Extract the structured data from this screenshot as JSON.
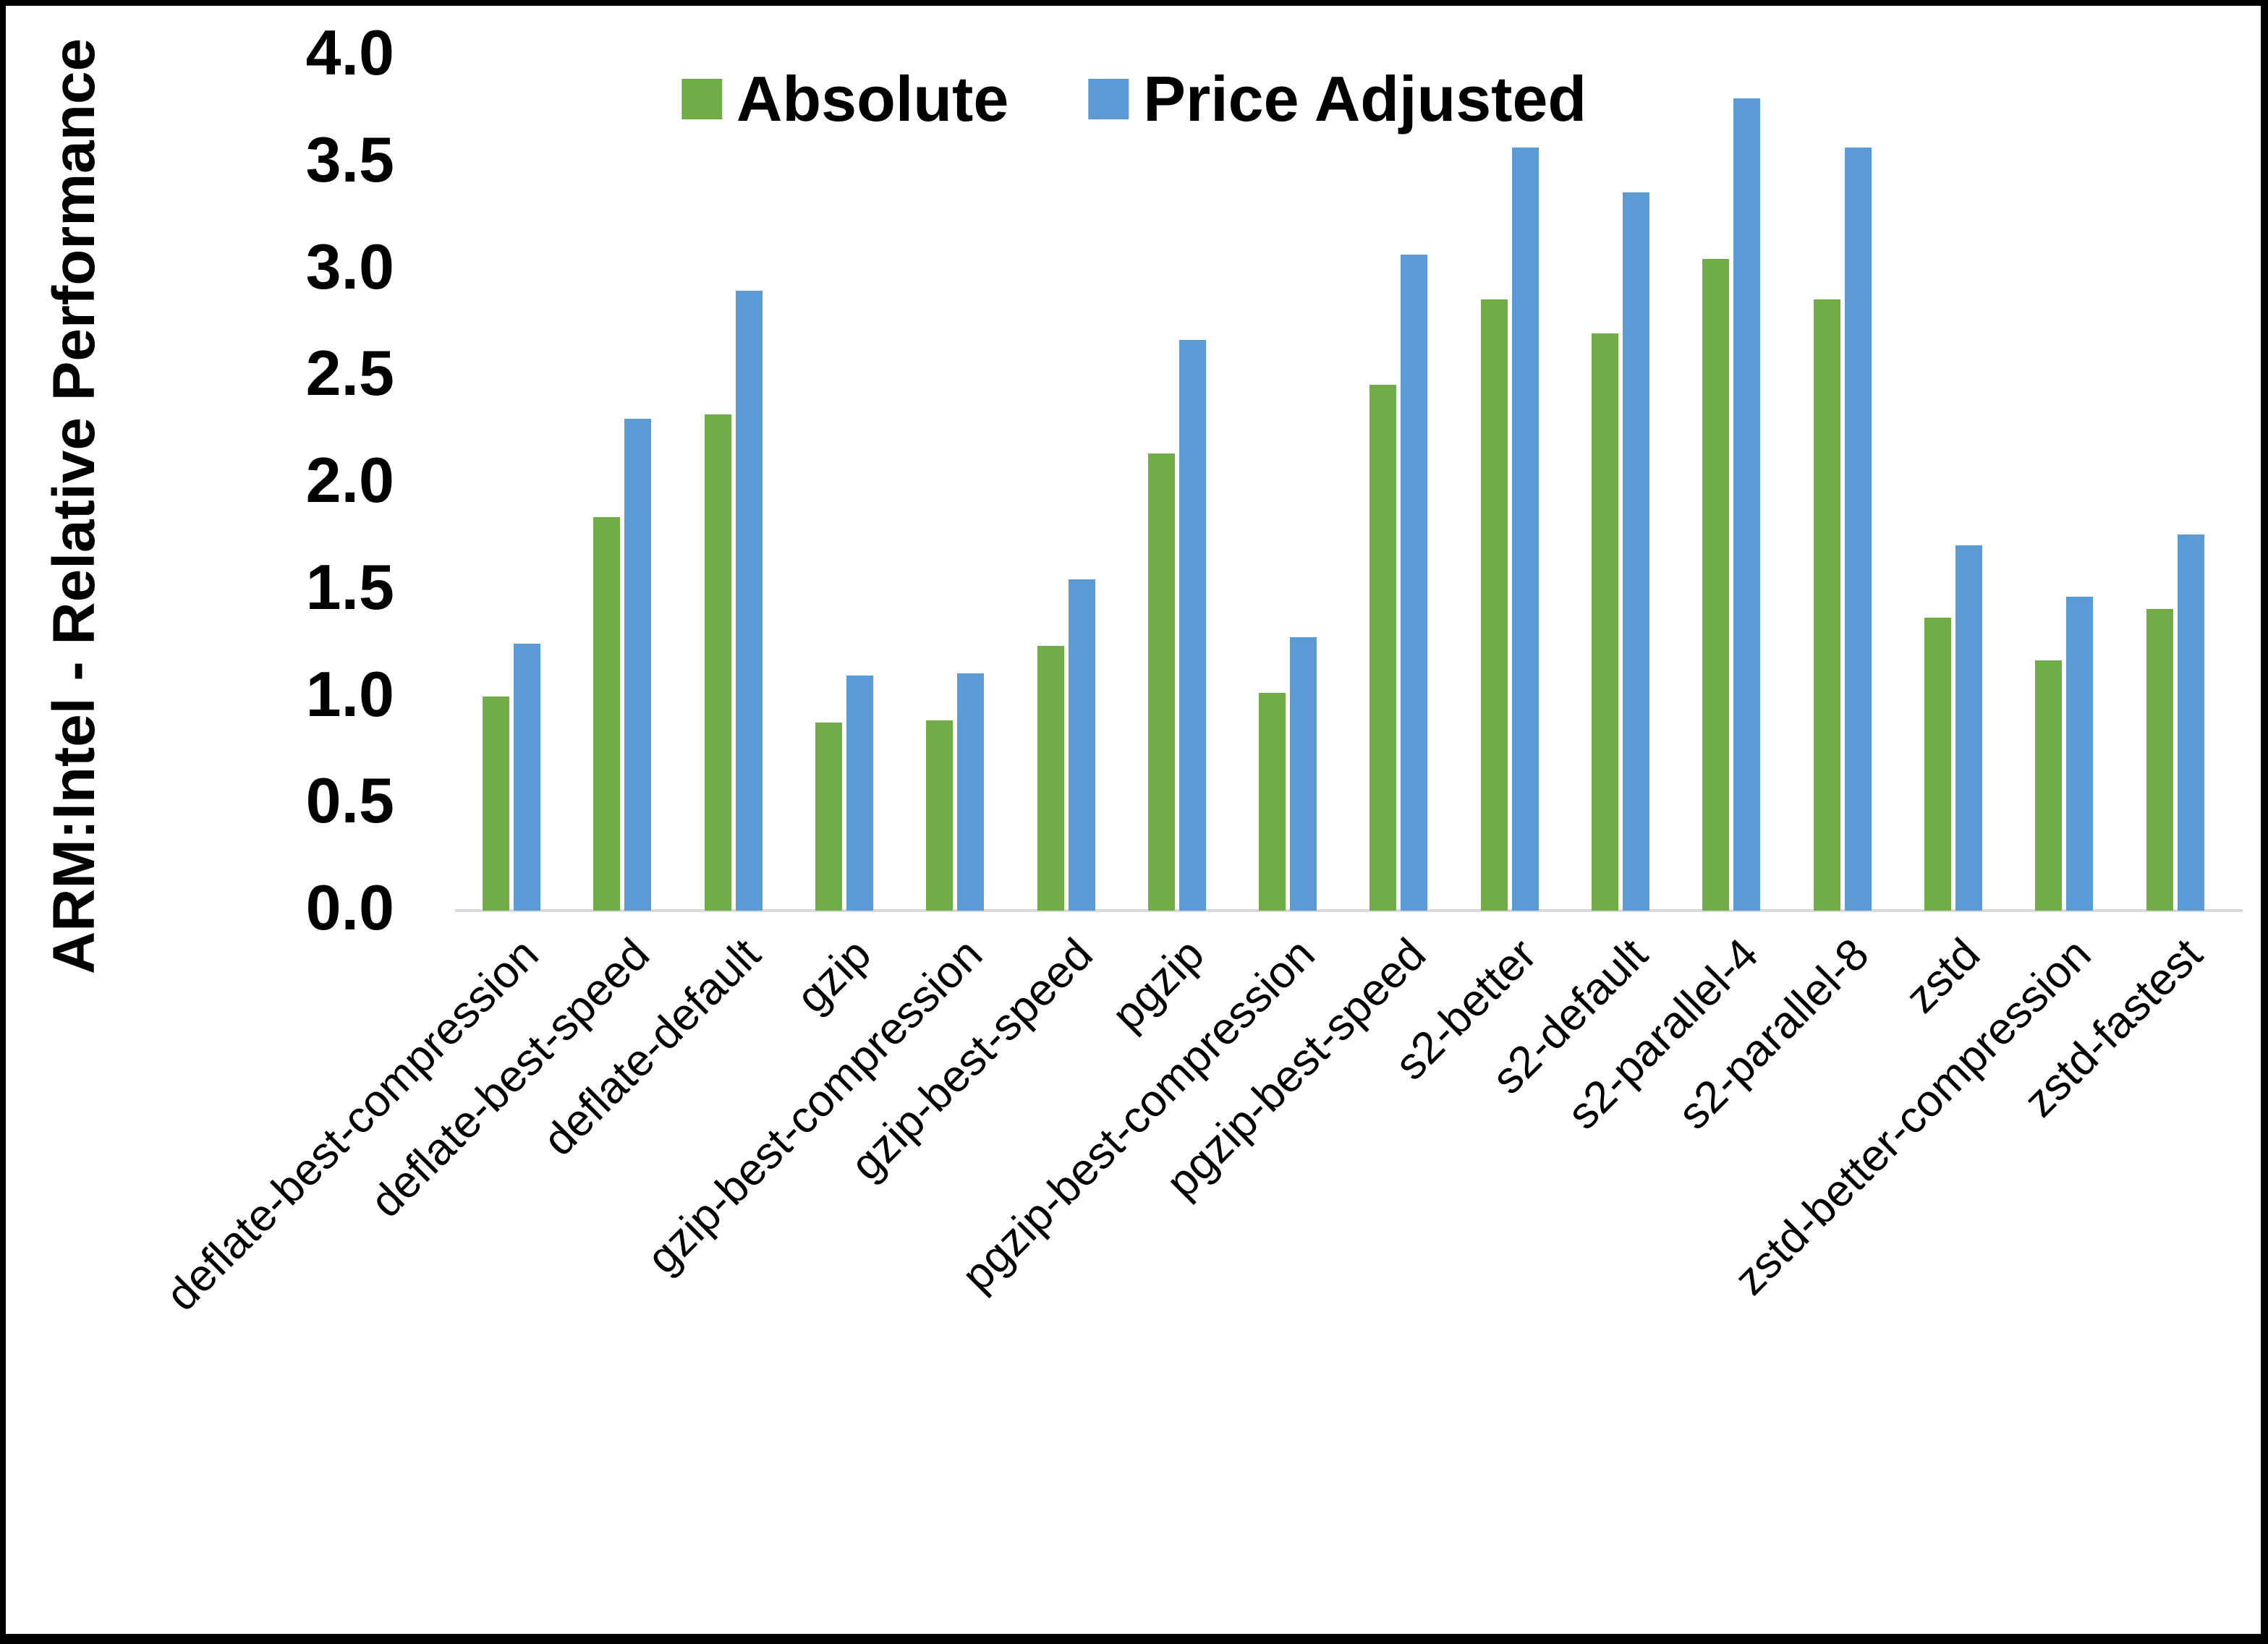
{
  "frame": {
    "background": "#ffffff",
    "border_color": "#000000"
  },
  "chart_data": {
    "type": "bar",
    "title": "",
    "ylabel": "ARM:Intel - Relative Performance",
    "xlabel": "",
    "ylim": [
      0.0,
      4.0
    ],
    "ytick_step": 0.5,
    "ytick_labels": [
      "0.0",
      "0.5",
      "1.0",
      "1.5",
      "2.0",
      "2.5",
      "3.0",
      "3.5",
      "4.0"
    ],
    "grid": false,
    "legend_position": "top-center",
    "axis_line_color": "#d9d9d9",
    "categories": [
      "deflate-best-compression",
      "deflate-best-speed",
      "deflate-default",
      "gzip",
      "gzip-best-compression",
      "gzip-best-speed",
      "pgzip",
      "pgzip-best-compression",
      "pgzip-best-speed",
      "s2-better",
      "s2-default",
      "s2-parallel-4",
      "s2-parallel-8",
      "zstd",
      "zstd-better-compression",
      "zstd-fastest"
    ],
    "series": [
      {
        "name": "Absolute",
        "color": "#70AD47",
        "values": [
          1.0,
          1.84,
          2.32,
          0.88,
          0.89,
          1.24,
          2.14,
          1.02,
          2.46,
          2.86,
          2.7,
          3.05,
          2.86,
          1.37,
          1.17,
          1.41
        ]
      },
      {
        "name": "Price Adjusted",
        "color": "#5B9BD5",
        "values": [
          1.25,
          2.3,
          2.9,
          1.1,
          1.11,
          1.55,
          2.67,
          1.28,
          3.07,
          3.57,
          3.36,
          3.8,
          3.57,
          1.71,
          1.47,
          1.76
        ]
      }
    ]
  }
}
